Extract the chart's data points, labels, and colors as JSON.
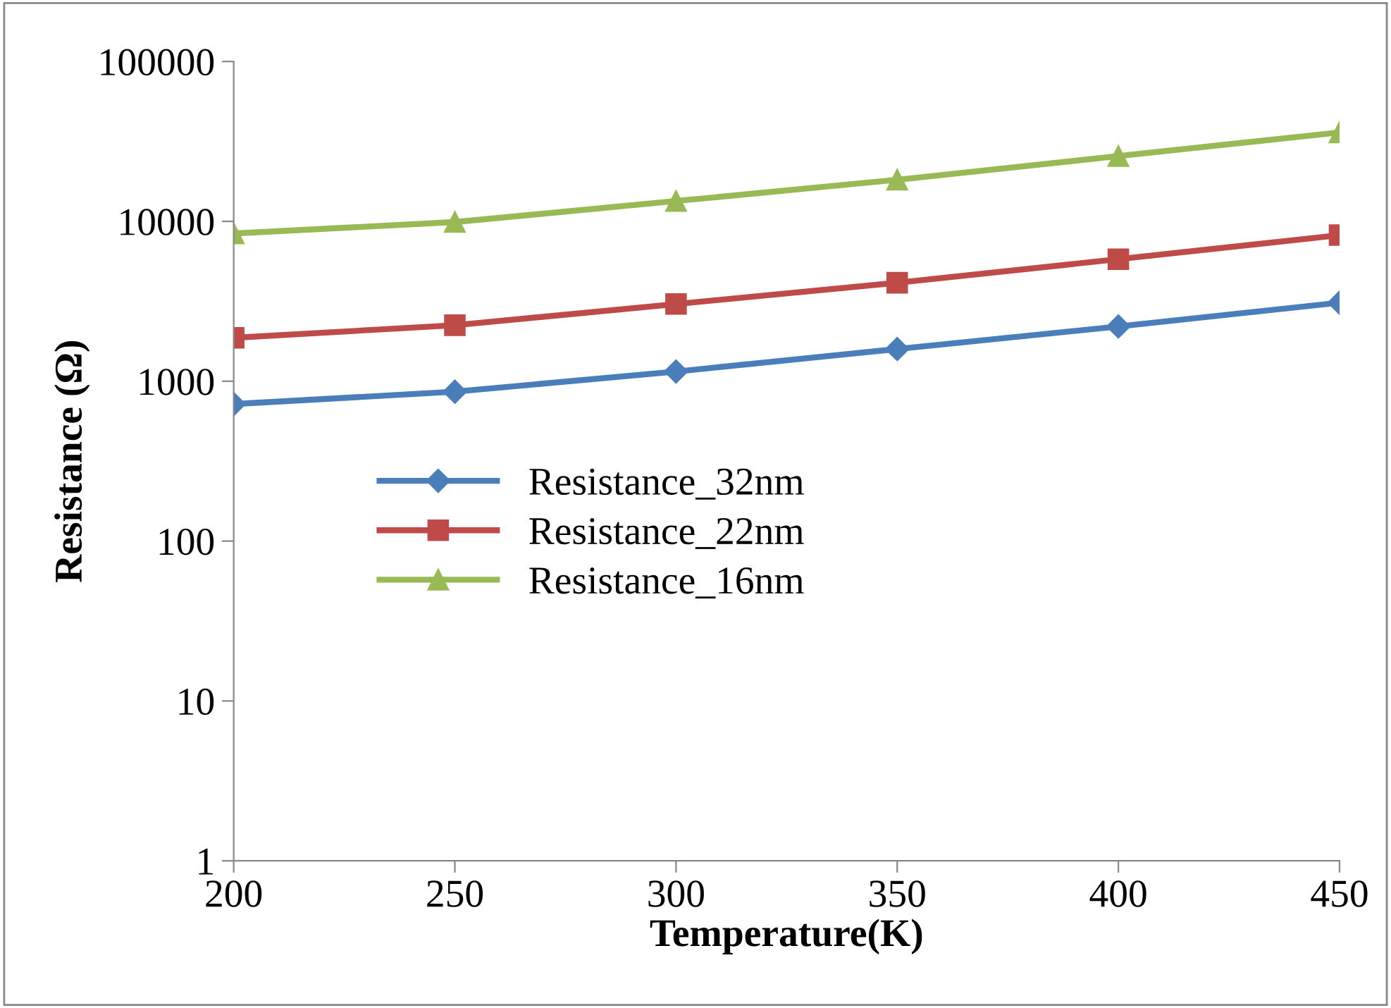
{
  "chart_data": {
    "type": "line",
    "xlabel": "Temperature(K)",
    "ylabel": "Resistance (Ω)",
    "x": [
      200,
      250,
      300,
      350,
      400,
      450
    ],
    "series": [
      {
        "name": "Resistance_32nm",
        "color": "#4a7ebb",
        "marker": "diamond",
        "values": [
          720,
          860,
          1150,
          1590,
          2200,
          3100
        ]
      },
      {
        "name": "Resistance_22nm",
        "color": "#be4b48",
        "marker": "square",
        "values": [
          1870,
          2240,
          3040,
          4130,
          5800,
          8200
        ]
      },
      {
        "name": "Resistance_16nm",
        "color": "#98b954",
        "marker": "triangle",
        "values": [
          8400,
          9900,
          13400,
          18200,
          25600,
          36000
        ]
      }
    ],
    "log": "y",
    "xlim": [
      200,
      450
    ],
    "xticks": [
      200,
      250,
      300,
      350,
      400,
      450
    ],
    "ylim": [
      1,
      100000
    ],
    "yticks": [
      1,
      10,
      100,
      1000,
      10000,
      100000
    ],
    "grid": false,
    "legend": "left",
    "line_style": "solid"
  }
}
